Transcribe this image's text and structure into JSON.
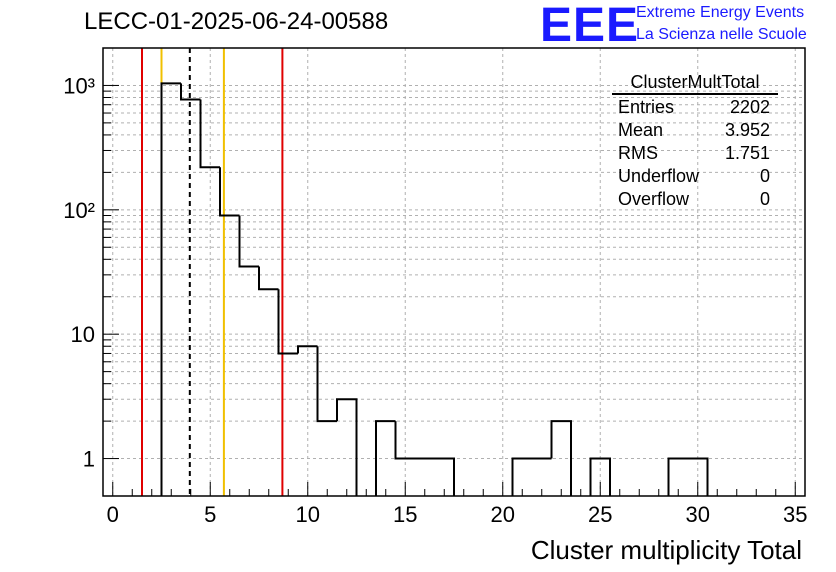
{
  "title": "LECC-01-2025-06-24-00588",
  "logo": {
    "mark": "EEE",
    "line1": "Extreme Energy Events",
    "line2": "La Scienza nelle Scuole"
  },
  "stats": {
    "name": "ClusterMultTotal",
    "rows": [
      {
        "label": "Entries",
        "value": "2202"
      },
      {
        "label": "Mean",
        "value": "3.952"
      },
      {
        "label": "RMS",
        "value": "1.751"
      },
      {
        "label": "Underflow",
        "value": "0"
      },
      {
        "label": "Overflow",
        "value": "0"
      }
    ]
  },
  "chart_data": {
    "type": "bar",
    "title": "LECC-01-2025-06-24-00588",
    "xlabel": "Cluster multiplicity Total",
    "ylabel": "",
    "xlim": [
      -0.5,
      35.5
    ],
    "ylim": [
      0.5,
      2000
    ],
    "yscale": "log",
    "grid": true,
    "legend": "top-right",
    "x_ticks": [
      "0",
      "5",
      "10",
      "15",
      "20",
      "25",
      "30",
      "35"
    ],
    "y_ticks": [
      "1",
      "10",
      "10²",
      "10³"
    ],
    "bins": [
      {
        "low": 2.5,
        "high": 3.5,
        "value": 1040
      },
      {
        "low": 3.5,
        "high": 4.5,
        "value": 770
      },
      {
        "low": 4.5,
        "high": 5.5,
        "value": 220
      },
      {
        "low": 5.5,
        "high": 6.5,
        "value": 90
      },
      {
        "low": 6.5,
        "high": 7.5,
        "value": 35
      },
      {
        "low": 7.5,
        "high": 8.5,
        "value": 23
      },
      {
        "low": 8.5,
        "high": 9.5,
        "value": 7
      },
      {
        "low": 9.5,
        "high": 10.5,
        "value": 8
      },
      {
        "low": 10.5,
        "high": 11.5,
        "value": 2
      },
      {
        "low": 11.5,
        "high": 12.5,
        "value": 3
      },
      {
        "low": 13.5,
        "high": 14.5,
        "value": 2
      },
      {
        "low": 14.5,
        "high": 17.5,
        "value": 1
      },
      {
        "low": 20.5,
        "high": 22.5,
        "value": 1
      },
      {
        "low": 22.5,
        "high": 23.5,
        "value": 2
      },
      {
        "low": 24.5,
        "high": 25.5,
        "value": 1
      },
      {
        "low": 28.5,
        "high": 30.5,
        "value": 1
      }
    ],
    "reference_lines": [
      {
        "x": 1.5,
        "color": "#e00000",
        "style": "solid"
      },
      {
        "x": 2.5,
        "color": "#f0c000",
        "style": "solid"
      },
      {
        "x": 3.952,
        "color": "#000000",
        "style": "dashed"
      },
      {
        "x": 5.7,
        "color": "#f0c000",
        "style": "solid"
      },
      {
        "x": 8.7,
        "color": "#e00000",
        "style": "solid"
      }
    ],
    "histogram_color": "#000000"
  }
}
